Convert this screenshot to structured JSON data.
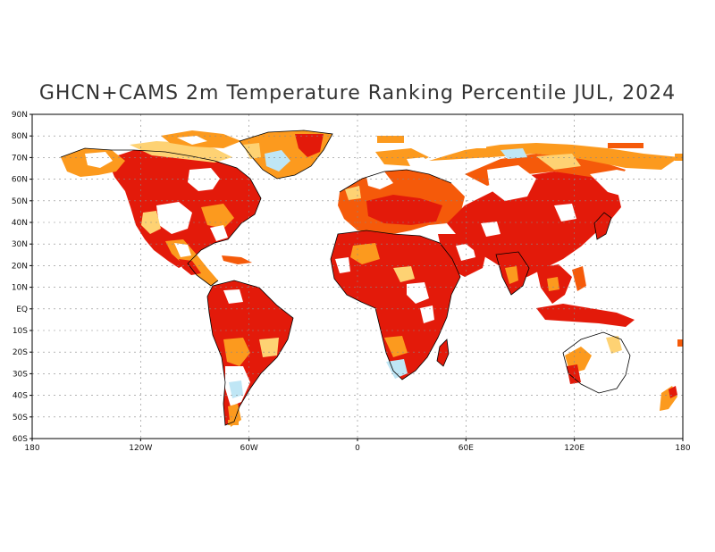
{
  "title": "GHCN+CAMS 2m Temperature Ranking Percentile JUL, 2024",
  "map": {
    "type": "global-percentile-map",
    "projection": "equirectangular",
    "lon_range": [
      -180,
      180
    ],
    "lat_range": [
      -60,
      90
    ],
    "grid": true,
    "lat_ticks": [
      {
        "lat": 90,
        "label": "90N"
      },
      {
        "lat": 80,
        "label": "80N"
      },
      {
        "lat": 70,
        "label": "70N"
      },
      {
        "lat": 60,
        "label": "60N"
      },
      {
        "lat": 50,
        "label": "50N"
      },
      {
        "lat": 40,
        "label": "40N"
      },
      {
        "lat": 30,
        "label": "30N"
      },
      {
        "lat": 20,
        "label": "20N"
      },
      {
        "lat": 10,
        "label": "10N"
      },
      {
        "lat": 0,
        "label": "EQ"
      },
      {
        "lat": -10,
        "label": "10S"
      },
      {
        "lat": -20,
        "label": "20S"
      },
      {
        "lat": -30,
        "label": "30S"
      },
      {
        "lat": -40,
        "label": "40S"
      },
      {
        "lat": -50,
        "label": "50S"
      },
      {
        "lat": -60,
        "label": "60S"
      }
    ],
    "lon_ticks": [
      {
        "lon": -180,
        "label": "180"
      },
      {
        "lon": -120,
        "label": "120W"
      },
      {
        "lon": -60,
        "label": "60W"
      },
      {
        "lon": 0,
        "label": "0"
      },
      {
        "lon": 60,
        "label": "60E"
      },
      {
        "lon": 120,
        "label": "120E"
      },
      {
        "lon": 180,
        "label": "180"
      }
    ],
    "colors": {
      "record_warm": "#e31a0a",
      "much_above": "#f55a0a",
      "above": "#fc9a1e",
      "slightly_above": "#fed273",
      "near_normal": "#ffffff",
      "below": "#bfe6f5",
      "much_below": "#6fb7e6",
      "coastline": "#000000",
      "grid": "#888888"
    }
  }
}
